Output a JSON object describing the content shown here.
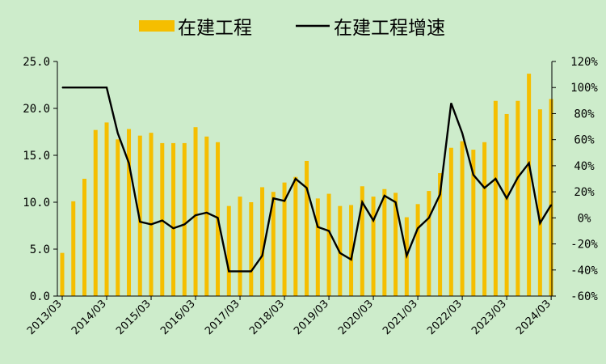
{
  "chart_data": {
    "type": "bar",
    "series": [
      {
        "name": "在建工程",
        "type": "bar",
        "axis": "left",
        "color": "#f5be00",
        "values": [
          4.6,
          10.1,
          12.5,
          17.7,
          18.5,
          16.7,
          17.8,
          17.1,
          17.4,
          16.3,
          16.3,
          16.3,
          18.0,
          17.0,
          16.4,
          9.6,
          10.6,
          10.0,
          11.6,
          11.1,
          12.1,
          12.7,
          14.4,
          10.4,
          10.9,
          9.6,
          9.7,
          11.7,
          10.6,
          11.4,
          11.0,
          8.4,
          9.8,
          11.2,
          13.1,
          15.8,
          16.5,
          15.6,
          16.4,
          20.8,
          19.4,
          20.8,
          23.7,
          19.9,
          21.0
        ]
      },
      {
        "name": "在建工程增速",
        "type": "line",
        "axis": "right",
        "color": "#000000",
        "values": [
          100,
          100,
          100,
          100,
          100,
          65,
          42,
          -3,
          -5,
          -2,
          -8,
          -5,
          2,
          4,
          0,
          -41,
          -41,
          -41,
          -29,
          15,
          13,
          30,
          23,
          -7,
          -10,
          -27,
          -32,
          12,
          -2,
          17,
          12,
          -29,
          -8,
          0,
          18,
          88,
          65,
          33,
          23,
          30,
          15,
          31,
          42,
          -4,
          10
        ]
      }
    ],
    "x_tick_labels": [
      "2013/03",
      "2014/03",
      "2015/03",
      "2016/03",
      "2017/03",
      "2018/03",
      "2019/03",
      "2020/03",
      "2021/03",
      "2022/03",
      "2023/03",
      "2024/03"
    ],
    "y_left": {
      "ylim": [
        0,
        25
      ],
      "ticks": [
        "0.0",
        "5.0",
        "10.0",
        "15.0",
        "20.0",
        "25.0"
      ]
    },
    "y_right": {
      "ylim": [
        -60,
        120
      ],
      "ticks": [
        "-60%",
        "-40%",
        "-20%",
        "0%",
        "20%",
        "40%",
        "60%",
        "80%",
        "100%",
        "120%"
      ]
    },
    "legend": {
      "position": "top-center",
      "items": [
        "在建工程",
        "在建工程增速"
      ]
    },
    "grid": false
  }
}
